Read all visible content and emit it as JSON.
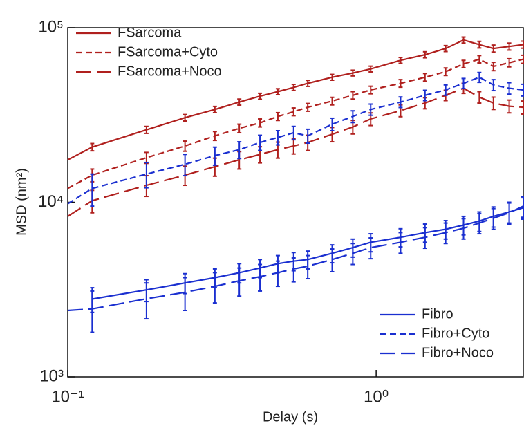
{
  "chart_data": {
    "type": "line",
    "xlabel": "Delay (s)",
    "ylabel": "MSD (nm²)",
    "xlog": true,
    "ylog": true,
    "xlim": [
      0.1,
      3.0
    ],
    "ylim": [
      1000,
      100000
    ],
    "xticks": [
      {
        "value": 0.1,
        "label": "10⁻¹"
      },
      {
        "value": 1,
        "label": "10⁰"
      }
    ],
    "yticks": [
      {
        "value": 1000,
        "label": "10³"
      },
      {
        "value": 10000,
        "label": "10⁴"
      },
      {
        "value": 100000,
        "label": "10⁵"
      }
    ],
    "x": [
      0.1,
      0.12,
      0.18,
      0.24,
      0.3,
      0.36,
      0.42,
      0.48,
      0.54,
      0.6,
      0.72,
      0.84,
      0.96,
      1.2,
      1.44,
      1.68,
      1.92,
      2.16,
      2.4,
      2.7,
      3.0
    ],
    "series": [
      {
        "name": "FSarcoma",
        "color": "#b0201e",
        "dash": "solid",
        "legend": "upper left",
        "values": [
          17500,
          20700,
          26000,
          30500,
          34000,
          37500,
          40500,
          43000,
          45500,
          48000,
          52000,
          55000,
          58000,
          65000,
          70000,
          76000,
          85000,
          80000,
          76000,
          78000,
          80000
        ],
        "errors": [
          null,
          1000,
          1200,
          1300,
          1400,
          1500,
          1600,
          1700,
          1800,
          1900,
          2000,
          2100,
          2200,
          2500,
          2800,
          3000,
          3400,
          3500,
          3500,
          3600,
          3700
        ]
      },
      {
        "name": "FSarcoma+Cyto",
        "color": "#b0201e",
        "dash": "short",
        "legend": "upper left",
        "values": [
          12000,
          14300,
          18000,
          21000,
          24000,
          26500,
          28500,
          31000,
          33000,
          35000,
          38000,
          41000,
          44000,
          48000,
          52000,
          56000,
          62000,
          66000,
          60000,
          63000,
          66000
        ],
        "errors": [
          null,
          1200,
          1300,
          1400,
          1400,
          1500,
          1500,
          1600,
          1700,
          1800,
          1900,
          2000,
          2200,
          2400,
          2600,
          2800,
          3000,
          3200,
          3300,
          3400,
          3500
        ]
      },
      {
        "name": "FSarcoma+Noco",
        "color": "#b0201e",
        "dash": "long",
        "legend": "upper left",
        "values": [
          8300,
          10200,
          12500,
          14300,
          16000,
          17500,
          18800,
          20000,
          21000,
          22000,
          24500,
          27000,
          30000,
          33500,
          37000,
          41000,
          45000,
          40000,
          37000,
          35500,
          35000
        ],
        "errors": [
          null,
          1500,
          1700,
          1800,
          1900,
          2000,
          2000,
          2100,
          2100,
          2200,
          2300,
          2400,
          2500,
          2600,
          2700,
          2800,
          3000,
          3000,
          3000,
          3000,
          3000
        ]
      },
      {
        "name": "Fibro",
        "color": "#1a2fd0",
        "dash": "solid",
        "legend": "lower right",
        "values": [
          null,
          2790,
          3150,
          3450,
          3700,
          3950,
          4200,
          4450,
          4600,
          4700,
          5100,
          5500,
          5900,
          6300,
          6700,
          7000,
          7400,
          7800,
          8300,
          8800,
          9300
        ],
        "errors": [
          null,
          450,
          450,
          450,
          450,
          500,
          500,
          500,
          550,
          550,
          600,
          650,
          700,
          750,
          800,
          850,
          900,
          1000,
          1100,
          1200,
          1300
        ]
      },
      {
        "name": "Fibro+Cyto",
        "color": "#1a2fd0",
        "dash": "short",
        "legend": "lower right",
        "values": [
          9800,
          12000,
          14500,
          16500,
          18500,
          20000,
          22000,
          23500,
          25000,
          24000,
          28000,
          31000,
          34000,
          37500,
          41000,
          44000,
          48000,
          52000,
          47000,
          45000,
          44000
        ],
        "errors": [
          null,
          2500,
          2400,
          2300,
          2200,
          2200,
          2200,
          2200,
          2200,
          2200,
          2300,
          2400,
          2500,
          2600,
          2800,
          3000,
          3200,
          3400,
          3400,
          3400,
          3400
        ]
      },
      {
        "name": "Fibro+Noco",
        "color": "#1a2fd0",
        "dash": "long",
        "legend": "lower right",
        "values": [
          2400,
          2450,
          2800,
          3050,
          3300,
          3550,
          3750,
          3950,
          4150,
          4300,
          4700,
          5100,
          5500,
          5900,
          6300,
          6700,
          7100,
          7600,
          8100,
          8700,
          9500
        ],
        "errors": [
          null,
          650,
          650,
          650,
          650,
          650,
          650,
          650,
          650,
          650,
          700,
          700,
          750,
          800,
          850,
          900,
          950,
          1000,
          1100,
          1200,
          1300
        ]
      }
    ]
  }
}
